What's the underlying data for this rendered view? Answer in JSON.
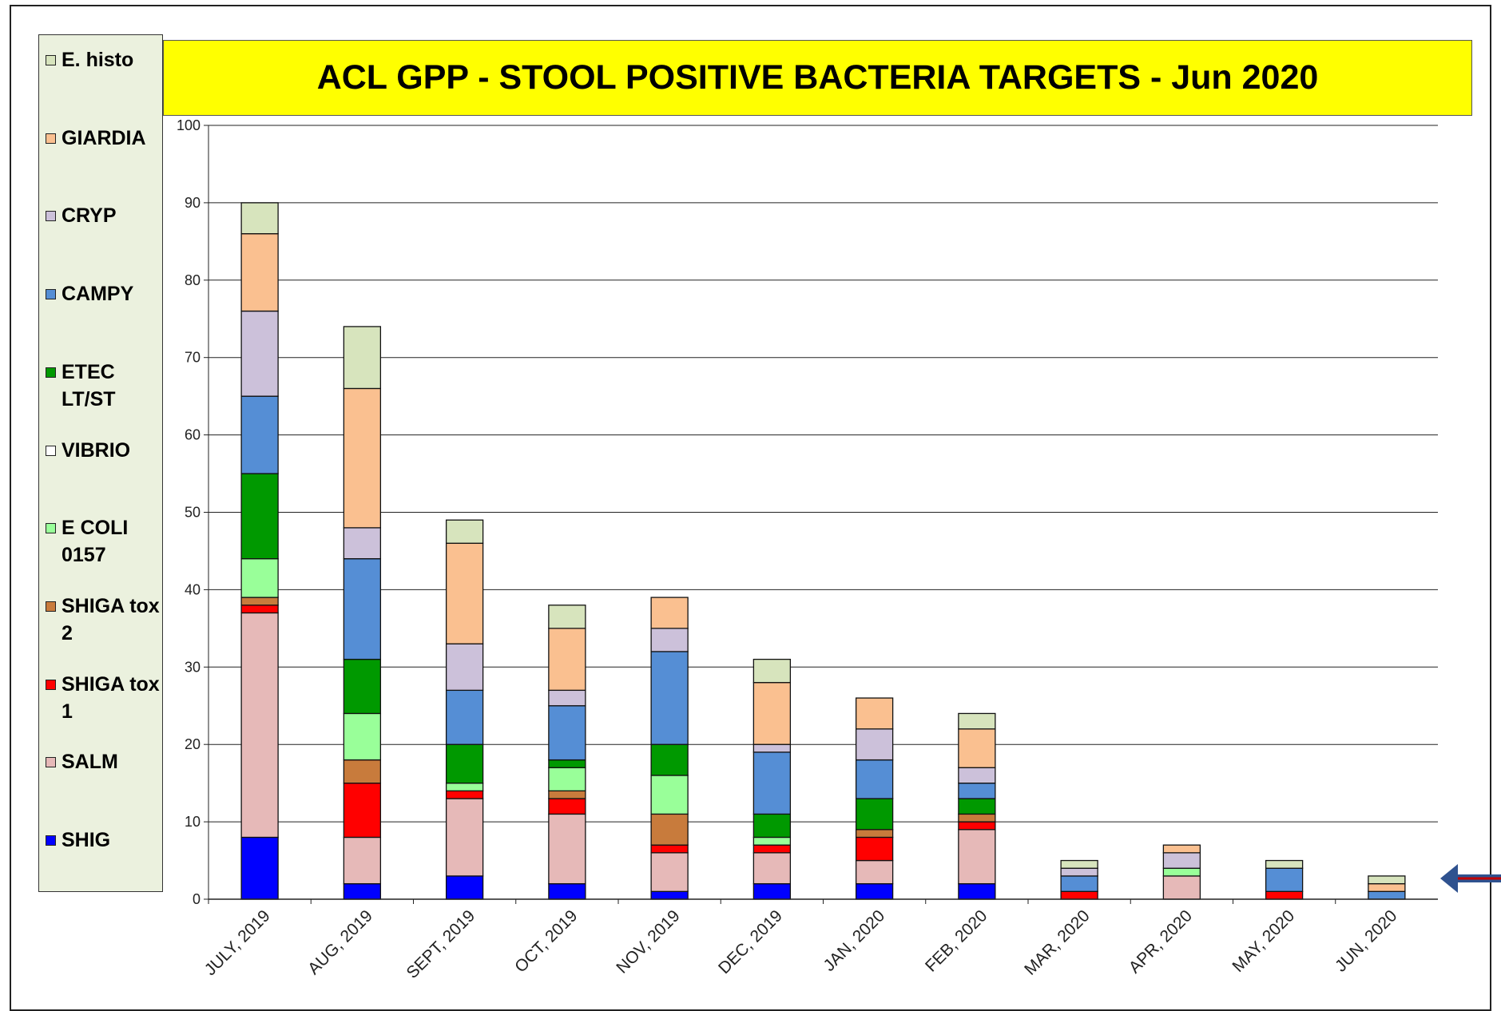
{
  "chart_data": {
    "type": "stacked-bar",
    "title": "ACL GPP - STOOL POSITIVE BACTERIA TARGETS - Jun 2020",
    "categories": [
      "JULY, 2019",
      "AUG, 2019",
      "SEPT, 2019",
      "OCT, 2019",
      "NOV, 2019",
      "DEC, 2019",
      "JAN, 2020",
      "FEB, 2020",
      "MAR, 2020",
      "APR, 2020",
      "MAY, 2020",
      "JUN, 2020"
    ],
    "series": [
      {
        "name": "SHIG",
        "color": "#0000ff",
        "values": [
          8,
          2,
          3,
          2,
          1,
          2,
          2,
          2,
          0,
          0,
          0,
          0
        ]
      },
      {
        "name": "SALM",
        "color": "#e6b9b8",
        "values": [
          29,
          6,
          10,
          9,
          5,
          4,
          3,
          7,
          0,
          3,
          0,
          0
        ]
      },
      {
        "name": "SHIGA tox 1",
        "color": "#ff0000",
        "values": [
          1,
          7,
          1,
          2,
          1,
          1,
          3,
          1,
          1,
          0,
          1,
          0
        ]
      },
      {
        "name": "SHIGA tox 2",
        "color": "#c87b3c",
        "values": [
          1,
          3,
          0,
          1,
          4,
          0,
          1,
          1,
          0,
          0,
          0,
          0
        ]
      },
      {
        "name": "E COLI 0157",
        "color": "#99ff99",
        "values": [
          5,
          6,
          1,
          3,
          5,
          1,
          0,
          0,
          0,
          1,
          0,
          0
        ]
      },
      {
        "name": "VIBRIO",
        "color": "#ffffff",
        "values": [
          0,
          0,
          0,
          0,
          0,
          0,
          0,
          0,
          0,
          0,
          0,
          0
        ]
      },
      {
        "name": "ETEC LT/ST",
        "color": "#009900",
        "values": [
          11,
          7,
          5,
          1,
          4,
          3,
          4,
          2,
          0,
          0,
          0,
          0
        ]
      },
      {
        "name": "CAMPY",
        "color": "#558ed5",
        "values": [
          10,
          13,
          7,
          7,
          12,
          8,
          5,
          2,
          2,
          0,
          3,
          1
        ]
      },
      {
        "name": "CRYP",
        "color": "#ccc1da",
        "values": [
          11,
          4,
          6,
          2,
          3,
          1,
          4,
          2,
          1,
          2,
          0,
          0
        ]
      },
      {
        "name": "GIARDIA",
        "color": "#fac090",
        "values": [
          10,
          18,
          13,
          8,
          4,
          8,
          4,
          5,
          0,
          1,
          0,
          1
        ]
      },
      {
        "name": "E. histo",
        "color": "#d7e4bd",
        "values": [
          4,
          8,
          3,
          3,
          0,
          3,
          0,
          2,
          1,
          0,
          1,
          1
        ]
      }
    ],
    "ylim": [
      0,
      100
    ],
    "yticks": [
      0,
      10,
      20,
      30,
      40,
      50,
      60,
      70,
      80,
      90,
      100
    ],
    "grid": true
  }
}
